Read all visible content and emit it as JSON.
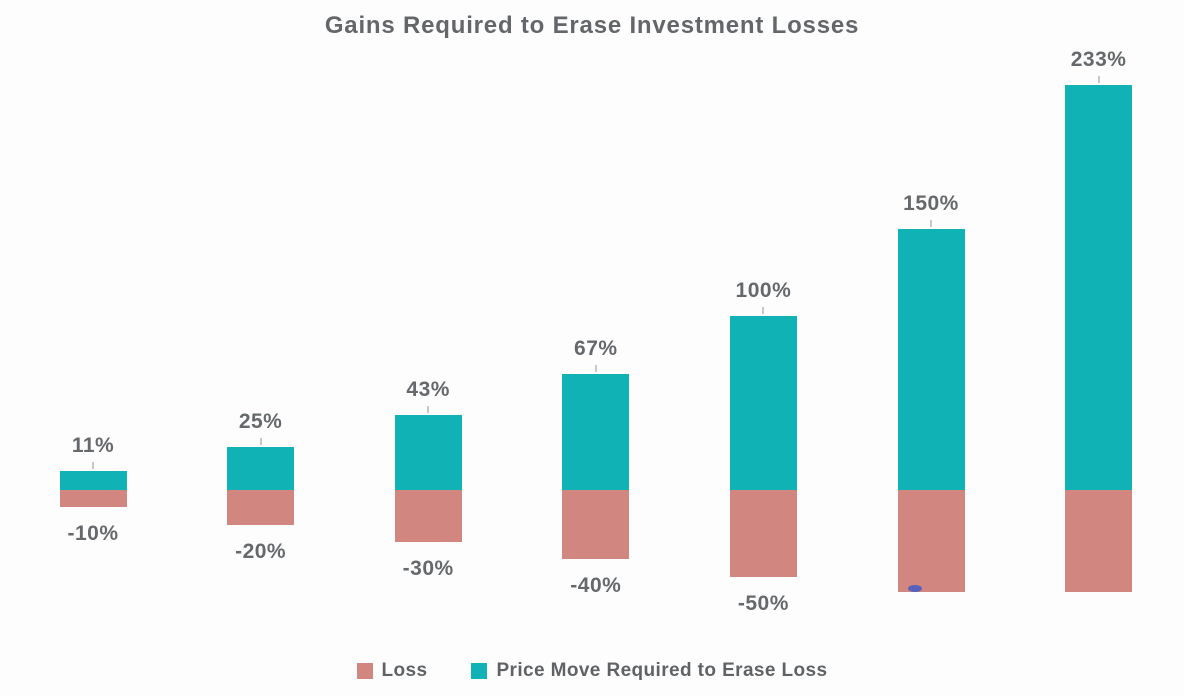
{
  "title": "Gains Required to Erase Investment Losses",
  "colors": {
    "gain_teal": "#10b2b5",
    "loss_salmon": "#d1867f",
    "label_gray": "#66696c",
    "tick_gray": "#c6c9cb",
    "artifact_blue": "#4a5ec4"
  },
  "legend": {
    "items": [
      {
        "label": "Loss",
        "color": "#d1867f"
      },
      {
        "label": "Price Move Required to Erase Loss",
        "color": "#10b2b5"
      }
    ]
  },
  "artifact": {
    "description": "small blue smudge at bottom-left corner of sixth bar"
  },
  "chart_data": {
    "type": "bar",
    "title": "Gains Required to Erase Investment Losses",
    "orientation": "vertical",
    "diverging_stacked": true,
    "grid": false,
    "axes_visible": false,
    "legend_position": "bottom",
    "series": [
      {
        "name": "Loss",
        "color": "#d1867f",
        "values": [
          -10,
          -20,
          -30,
          -40,
          -50,
          -60,
          -70
        ]
      },
      {
        "name": "Price Move Required to Erase Loss",
        "color": "#10b2b5",
        "values": [
          11,
          25,
          43,
          67,
          100,
          150,
          233
        ]
      }
    ],
    "bars": [
      {
        "gain": 11,
        "loss": -10,
        "gain_label": "11%",
        "loss_label": "-10%",
        "loss_bar_clipped": false
      },
      {
        "gain": 25,
        "loss": -20,
        "gain_label": "25%",
        "loss_label": "-20%",
        "loss_bar_clipped": false
      },
      {
        "gain": 43,
        "loss": -30,
        "gain_label": "43%",
        "loss_label": "-30%",
        "loss_bar_clipped": false
      },
      {
        "gain": 67,
        "loss": -40,
        "gain_label": "67%",
        "loss_label": "-40%",
        "loss_bar_clipped": false
      },
      {
        "gain": 100,
        "loss": -50,
        "gain_label": "100%",
        "loss_label": "-50%",
        "loss_bar_clipped": false
      },
      {
        "gain": 150,
        "loss": -60,
        "gain_label": "150%",
        "loss_label": "",
        "loss_bar_clipped": true
      },
      {
        "gain": 233,
        "loss": -70,
        "gain_label": "233%",
        "loss_label": "",
        "loss_bar_clipped": true
      }
    ]
  }
}
